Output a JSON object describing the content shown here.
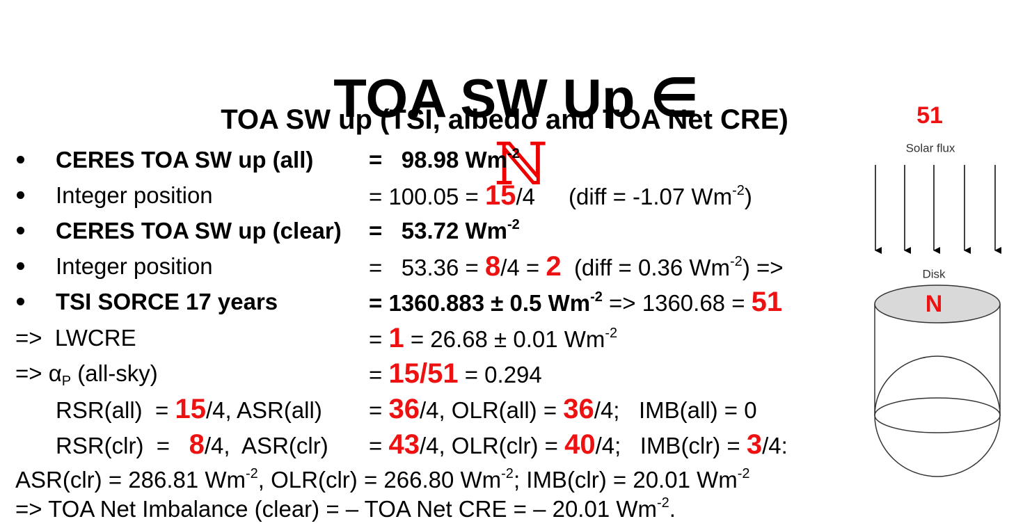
{
  "title": {
    "text": "TOA SW Up ∈",
    "symbol": "ℕ"
  },
  "subtitle": "TOA SW up (TSI, albedo and TOA Net CRE)",
  "lines": [
    {
      "left": [
        "CERES TOA SW up (all)"
      ],
      "right": [
        "=   98.98 Wm",
        "-2"
      ]
    },
    {
      "left": [
        "Integer position"
      ],
      "right": [
        "= 100.05 = ",
        "15",
        "/4",
        "(diff = -1.07 Wm",
        "-2",
        ")"
      ]
    },
    {
      "left": [
        "CERES TOA SW up (clear)"
      ],
      "right": [
        "=   53.72 Wm",
        "-2"
      ]
    },
    {
      "left": [
        "Integer position"
      ],
      "right": [
        "=   53.36 = ",
        "8",
        "/4 = ",
        "2",
        "  (diff = 0.36 Wm",
        "-2",
        ") =>"
      ]
    },
    {
      "left": [
        "TSI SORCE 17 years"
      ],
      "right": [
        "= 1360.883 ± 0.5 Wm",
        "-2",
        " => 1360.68 = ",
        "51"
      ]
    },
    {
      "left": [
        "=>  LWCRE"
      ],
      "right": [
        "= ",
        "1",
        " = 26.68 ± 0.01 Wm",
        "-2"
      ]
    },
    {
      "left": [
        "=> ",
        "α",
        "P",
        " (all-sky)"
      ],
      "right": [
        "= ",
        "15",
        "/",
        "51",
        " = 0.294"
      ]
    },
    {
      "left": [
        "RSR(all)  = ",
        "15",
        "/4, ASR(all)"
      ],
      "right": [
        "= ",
        "36",
        "/4, OLR(all) = ",
        "36",
        "/4;   IMB(all) = 0"
      ]
    },
    {
      "left": [
        "RSR(clr)  =   ",
        "8",
        "/4,  ASR(clr)"
      ],
      "right": [
        "= ",
        "43",
        "/4, OLR(clr) = ",
        "40",
        "/4;   IMB(clr) = ",
        "3",
        "/4:"
      ]
    },
    {
      "text": [
        "ASR(clr) = 286.81 Wm",
        "-2",
        ", OLR(clr) = 266.80 Wm",
        "-2",
        "; IMB(clr) = 20.01 Wm",
        "-2"
      ]
    },
    {
      "text": [
        "=> TOA Net Imbalance (clear) = – TOA Net CRE = – 20.01 Wm",
        "-2",
        "."
      ]
    }
  ],
  "figure": {
    "value": "51",
    "flux_label": "Solar flux",
    "disk_label": "Disk",
    "disk_symbol": "N"
  }
}
